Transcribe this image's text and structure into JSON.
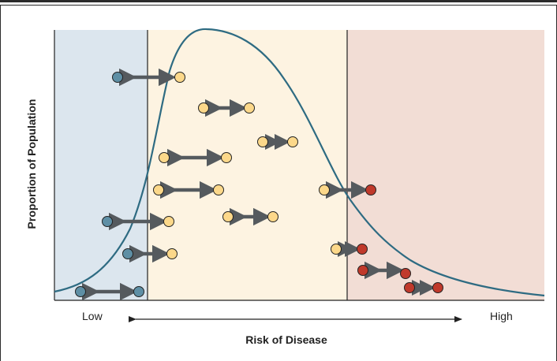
{
  "labels": {
    "y_axis": "Proportion of Population",
    "x_axis": "Risk of Disease",
    "low": "Low",
    "high": "High"
  },
  "colors": {
    "low_zone": "#dce6ee",
    "mid_zone": "#fdf3e1",
    "high_zone": "#f2ddd5",
    "curve": "#2e6b82",
    "low_dot": "#5e8fa5",
    "mid_dot": "#fcd88a",
    "high_dot": "#c0392b",
    "arrow": "#555a5e"
  }
}
